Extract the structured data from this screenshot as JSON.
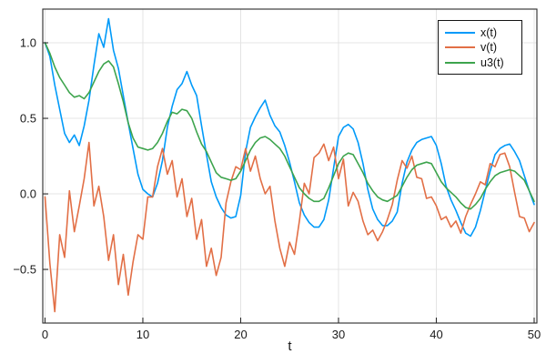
{
  "figure": {
    "background": "#ffffff",
    "frame_color": "#2b2b2b",
    "grid_color": "#e4e4e4",
    "text_color": "#1a1a1a"
  },
  "chart_data": {
    "type": "line",
    "title": "",
    "xlabel": "t",
    "ylabel": "",
    "grid": true,
    "legend_position": "top-right",
    "xlim": [
      -0.23,
      50.28
    ],
    "ylim": [
      -0.855,
      1.223
    ],
    "xticks": {
      "values": [
        0,
        10,
        20,
        30,
        40,
        50
      ],
      "labels": [
        "0",
        "10",
        "20",
        "30",
        "40",
        "50"
      ]
    },
    "yticks": {
      "values": [
        -0.5,
        0.0,
        0.5,
        1.0
      ],
      "labels": [
        "−0.5",
        "0.0",
        "0.5",
        "1.0"
      ]
    },
    "x": [
      0,
      0.5,
      1,
      1.5,
      2,
      2.5,
      3,
      3.5,
      4,
      4.5,
      5,
      5.5,
      6,
      6.5,
      7,
      7.5,
      8,
      8.5,
      9,
      9.5,
      10,
      10.5,
      11,
      11.5,
      12,
      12.5,
      13,
      13.5,
      14,
      14.5,
      15,
      15.5,
      16,
      16.5,
      17,
      17.5,
      18,
      18.5,
      19,
      19.5,
      20,
      20.5,
      21,
      21.5,
      22,
      22.5,
      23,
      23.5,
      24,
      24.5,
      25,
      25.5,
      26,
      26.5,
      27,
      27.5,
      28,
      28.5,
      29,
      29.5,
      30,
      30.5,
      31,
      31.5,
      32,
      32.5,
      33,
      33.5,
      34,
      34.5,
      35,
      35.5,
      36,
      36.5,
      37,
      37.5,
      38,
      38.5,
      39,
      39.5,
      40,
      40.5,
      41,
      41.5,
      42,
      42.5,
      43,
      43.5,
      44,
      44.5,
      45,
      45.5,
      46,
      46.5,
      47,
      47.5,
      48,
      48.5,
      49,
      49.5,
      50
    ],
    "series": [
      {
        "name": "x(t)",
        "color": "#009af9",
        "values": [
          1.0,
          0.91,
          0.72,
          0.56,
          0.4,
          0.34,
          0.39,
          0.32,
          0.45,
          0.62,
          0.85,
          1.06,
          0.97,
          1.16,
          0.95,
          0.83,
          0.65,
          0.47,
          0.3,
          0.13,
          0.03,
          0.0,
          -0.02,
          0.07,
          0.22,
          0.44,
          0.58,
          0.69,
          0.73,
          0.81,
          0.72,
          0.65,
          0.45,
          0.26,
          0.08,
          -0.02,
          -0.09,
          -0.14,
          -0.16,
          -0.15,
          -0.01,
          0.28,
          0.44,
          0.51,
          0.57,
          0.62,
          0.52,
          0.45,
          0.41,
          0.32,
          0.21,
          0.08,
          -0.06,
          -0.14,
          -0.19,
          -0.22,
          -0.22,
          -0.17,
          -0.04,
          0.17,
          0.38,
          0.44,
          0.46,
          0.43,
          0.34,
          0.2,
          0.03,
          -0.1,
          -0.17,
          -0.21,
          -0.21,
          -0.18,
          -0.12,
          0.07,
          0.21,
          0.29,
          0.34,
          0.36,
          0.37,
          0.38,
          0.32,
          0.2,
          0.05,
          -0.04,
          -0.11,
          -0.19,
          -0.26,
          -0.28,
          -0.22,
          -0.11,
          0.02,
          0.15,
          0.26,
          0.3,
          0.32,
          0.33,
          0.28,
          0.22,
          0.12,
          0.02,
          -0.07
        ]
      },
      {
        "name": "v(t)",
        "color": "#e26f46",
        "values": [
          -0.02,
          -0.46,
          -0.78,
          -0.27,
          -0.42,
          0.02,
          -0.25,
          -0.08,
          0.1,
          0.34,
          -0.08,
          0.05,
          -0.15,
          -0.44,
          -0.27,
          -0.6,
          -0.4,
          -0.67,
          -0.45,
          -0.27,
          -0.3,
          -0.02,
          -0.02,
          0.18,
          0.3,
          0.13,
          0.22,
          -0.02,
          0.1,
          -0.15,
          -0.03,
          -0.3,
          -0.17,
          -0.48,
          -0.36,
          -0.54,
          -0.42,
          -0.06,
          0.08,
          0.18,
          0.16,
          0.3,
          0.15,
          0.25,
          0.1,
          0.0,
          0.05,
          -0.18,
          -0.36,
          -0.48,
          -0.32,
          -0.4,
          -0.18,
          0.07,
          0.0,
          0.24,
          0.27,
          0.33,
          0.22,
          0.31,
          0.1,
          0.23,
          -0.08,
          0.01,
          -0.05,
          -0.18,
          -0.27,
          -0.24,
          -0.31,
          -0.25,
          -0.17,
          -0.07,
          0.09,
          0.22,
          0.17,
          0.25,
          0.11,
          0.1,
          -0.03,
          -0.02,
          -0.08,
          -0.17,
          -0.15,
          -0.22,
          -0.18,
          -0.26,
          -0.15,
          -0.07,
          0.0,
          0.08,
          0.06,
          0.2,
          0.18,
          0.26,
          0.27,
          0.18,
          0.01,
          -0.15,
          -0.16,
          -0.25,
          -0.19
        ]
      },
      {
        "name": "u3(t)",
        "color": "#3da44d",
        "values": [
          1.0,
          0.93,
          0.84,
          0.77,
          0.72,
          0.67,
          0.64,
          0.65,
          0.63,
          0.67,
          0.74,
          0.81,
          0.86,
          0.88,
          0.84,
          0.73,
          0.61,
          0.47,
          0.37,
          0.31,
          0.3,
          0.29,
          0.3,
          0.34,
          0.4,
          0.48,
          0.54,
          0.53,
          0.56,
          0.55,
          0.5,
          0.41,
          0.33,
          0.28,
          0.21,
          0.14,
          0.11,
          0.1,
          0.09,
          0.1,
          0.15,
          0.22,
          0.29,
          0.34,
          0.37,
          0.38,
          0.36,
          0.33,
          0.3,
          0.25,
          0.18,
          0.11,
          0.04,
          0.0,
          -0.03,
          -0.05,
          -0.05,
          -0.03,
          0.04,
          0.12,
          0.2,
          0.25,
          0.27,
          0.26,
          0.2,
          0.14,
          0.07,
          0.02,
          -0.02,
          -0.04,
          -0.05,
          -0.03,
          -0.01,
          0.05,
          0.11,
          0.16,
          0.19,
          0.2,
          0.21,
          0.2,
          0.14,
          0.08,
          0.04,
          0.01,
          -0.02,
          -0.06,
          -0.09,
          -0.1,
          -0.07,
          -0.03,
          0.03,
          0.08,
          0.12,
          0.14,
          0.15,
          0.16,
          0.15,
          0.12,
          0.09,
          0.02,
          -0.05
        ]
      }
    ]
  }
}
